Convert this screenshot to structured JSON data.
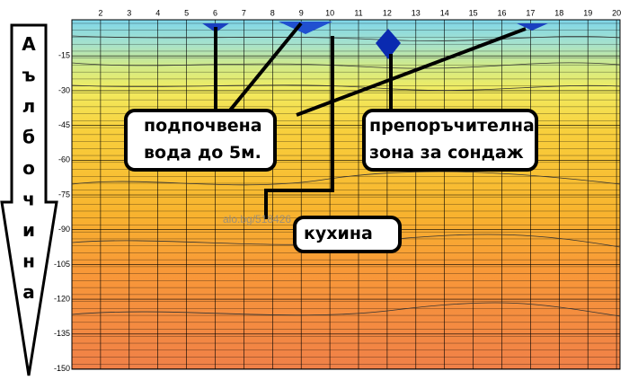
{
  "x_axis": {
    "ticks": [
      2,
      3,
      4,
      5,
      6,
      7,
      8,
      9,
      10,
      11,
      12,
      13,
      14,
      15,
      16,
      17,
      18,
      19,
      20
    ]
  },
  "y_axis": {
    "ticks": [
      -15,
      -30,
      -45,
      -60,
      -75,
      -90,
      -105,
      -120,
      -135,
      -150
    ]
  },
  "depth_label": [
    "А",
    "ъ",
    "л",
    "б",
    "о",
    "ч",
    "и",
    "н",
    "а"
  ],
  "callouts": [
    {
      "lines": [
        "подпочвена",
        "вода до 5м."
      ]
    },
    {
      "lines": [
        "препоръчителна",
        "зона за сондаж"
      ]
    },
    {
      "lines": [
        "кухина"
      ]
    }
  ],
  "watermark": "alo.bg/518426"
}
